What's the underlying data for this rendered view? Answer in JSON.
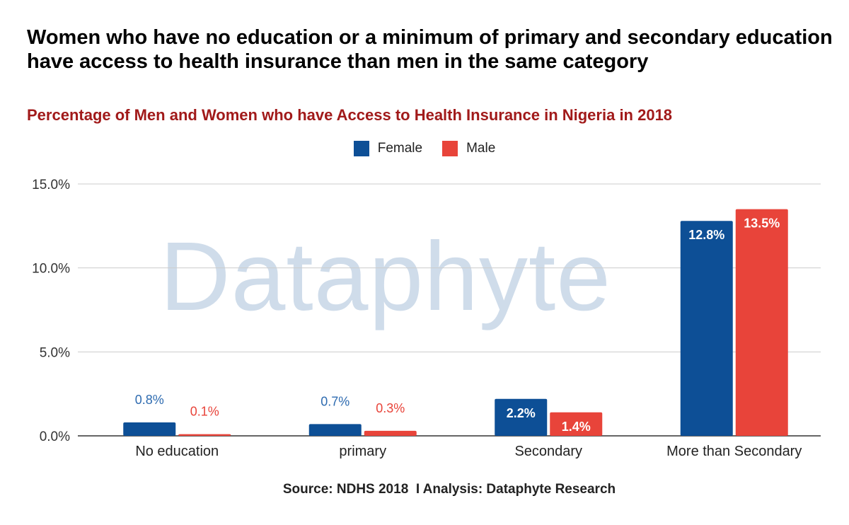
{
  "header": {
    "title": "Women who have no education or a minimum of primary and secondary education have access to health insurance than men in the same category",
    "subtitle": "Percentage of Men and Women who have Access to Health Insurance in Nigeria in 2018"
  },
  "watermark": "Dataphyte",
  "footer": {
    "source": "Source: NDHS 2018  I Analysis: Dataphyte Research"
  },
  "colors": {
    "female": "#0d4f96",
    "male": "#e8443a",
    "subtitle": "#a11a1a",
    "grid": "#cccccc",
    "watermark": "#cfdcea"
  },
  "chart_data": {
    "type": "bar",
    "title": "Women who have no education or a minimum of primary and secondary education have access to health insurance than men in the same category",
    "subtitle": "Percentage of Men and Women who have Access to Health Insurance in Nigeria in 2018",
    "categories": [
      "No education",
      "primary",
      "Secondary",
      "More than Secondary"
    ],
    "series": [
      {
        "name": "Female",
        "values": [
          0.8,
          0.7,
          2.2,
          12.8
        ],
        "labels": [
          "0.8%",
          "0.7%",
          "2.2%",
          "12.8%"
        ],
        "color": "#0d4f96"
      },
      {
        "name": "Male",
        "values": [
          0.1,
          0.3,
          1.4,
          13.5
        ],
        "labels": [
          "0.1%",
          "0.3%",
          "1.4%",
          "13.5%"
        ],
        "color": "#e8443a"
      }
    ],
    "ylim": [
      0,
      15
    ],
    "yticks": [
      0,
      5,
      10,
      15
    ],
    "ytick_labels": [
      "0.0%",
      "5.0%",
      "10.0%",
      "15.0%"
    ],
    "grid": true,
    "legend_position": "top-center",
    "xlabel": "",
    "ylabel": ""
  }
}
